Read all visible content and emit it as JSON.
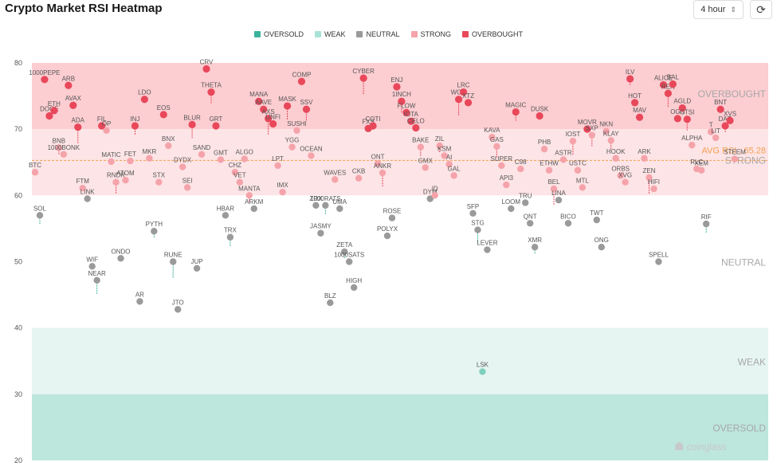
{
  "header": {
    "title": "Crypto Market RSI Heatmap",
    "interval_label": "4 hour",
    "interval_icon": "chevron-updown-icon",
    "refresh_icon": "refresh-icon"
  },
  "brand": {
    "name": "coinglass",
    "icon": "coinglass-logo-icon"
  },
  "chart_data": {
    "type": "scatter",
    "title": "Crypto Market RSI Heatmap",
    "ylim": [
      20,
      80
    ],
    "yticks": [
      20,
      30,
      40,
      50,
      60,
      70,
      80
    ],
    "legend_position": "top-center",
    "legend": [
      {
        "name": "OVERSOLD",
        "color": "#3bb39c"
      },
      {
        "name": "WEAK",
        "color": "#a9e3d7"
      },
      {
        "name": "NEUTRAL",
        "color": "#9a9a9a"
      },
      {
        "name": "STRONG",
        "color": "#f5a3aa"
      },
      {
        "name": "OVERBOUGHT",
        "color": "#e8485a"
      }
    ],
    "zones": [
      {
        "label": "OVERBOUGHT",
        "from": 70,
        "to": 80,
        "color": "#fccdd1"
      },
      {
        "label": "STRONG",
        "from": 60,
        "to": 70,
        "color": "#fde4e6"
      },
      {
        "label": "NEUTRAL",
        "from": 40,
        "to": 60,
        "color": "#ffffff"
      },
      {
        "label": "WEAK",
        "from": 30,
        "to": 40,
        "color": "#e6f5f2"
      },
      {
        "label": "OVERSOLD",
        "from": 20,
        "to": 30,
        "color": "#bde6dd"
      }
    ],
    "average_label": "AVG RSI : 65.28",
    "average": 65.28,
    "points": [
      {
        "name": "BTC",
        "rsi": 63.5
      },
      {
        "name": "SOL",
        "rsi": 57.0
      },
      {
        "name": "1000PEPE",
        "rsi": 77.5
      },
      {
        "name": "DOGE",
        "rsi": 72.0
      },
      {
        "name": "ETH",
        "rsi": 72.8
      },
      {
        "name": "BNB",
        "rsi": 67.2
      },
      {
        "name": "1000BONK",
        "rsi": 66.2
      },
      {
        "name": "ARB",
        "rsi": 76.6
      },
      {
        "name": "AVAX",
        "rsi": 73.6
      },
      {
        "name": "ADA",
        "rsi": 70.3
      },
      {
        "name": "FTM",
        "rsi": 61.1
      },
      {
        "name": "LINK",
        "rsi": 59.5
      },
      {
        "name": "WIF",
        "rsi": 49.3
      },
      {
        "name": "NEAR",
        "rsi": 47.2
      },
      {
        "name": "FIL",
        "rsi": 70.5
      },
      {
        "name": "OP",
        "rsi": 69.8
      },
      {
        "name": "MATIC",
        "rsi": 65.1
      },
      {
        "name": "RNDR",
        "rsi": 62.0
      },
      {
        "name": "ONDO",
        "rsi": 50.5
      },
      {
        "name": "ATOM",
        "rsi": 62.3
      },
      {
        "name": "FET",
        "rsi": 65.2
      },
      {
        "name": "INJ",
        "rsi": 70.5
      },
      {
        "name": "AR",
        "rsi": 44.0
      },
      {
        "name": "LDO",
        "rsi": 74.5
      },
      {
        "name": "MKR",
        "rsi": 65.6
      },
      {
        "name": "PYTH",
        "rsi": 54.6
      },
      {
        "name": "STX",
        "rsi": 62.0
      },
      {
        "name": "EOS",
        "rsi": 72.2
      },
      {
        "name": "BNX",
        "rsi": 67.5
      },
      {
        "name": "RUNE",
        "rsi": 50.0
      },
      {
        "name": "JTO",
        "rsi": 42.8
      },
      {
        "name": "DYDX",
        "rsi": 64.3
      },
      {
        "name": "SEI",
        "rsi": 61.2
      },
      {
        "name": "BLUR",
        "rsi": 70.7
      },
      {
        "name": "JUP",
        "rsi": 49.0
      },
      {
        "name": "SAND",
        "rsi": 66.2
      },
      {
        "name": "CRV",
        "rsi": 79.1
      },
      {
        "name": "THETA",
        "rsi": 75.6
      },
      {
        "name": "GRT",
        "rsi": 70.5
      },
      {
        "name": "GMT",
        "rsi": 65.4
      },
      {
        "name": "HBAR",
        "rsi": 57.0
      },
      {
        "name": "TRX",
        "rsi": 53.7
      },
      {
        "name": "CHZ",
        "rsi": 63.5
      },
      {
        "name": "VET",
        "rsi": 62.0
      },
      {
        "name": "ALGO",
        "rsi": 65.5
      },
      {
        "name": "MANTA",
        "rsi": 60.0
      },
      {
        "name": "ARKM",
        "rsi": 58.0
      },
      {
        "name": "MANA",
        "rsi": 74.2
      },
      {
        "name": "AAVE",
        "rsi": 73.0
      },
      {
        "name": "AXS",
        "rsi": 71.6
      },
      {
        "name": "UNFI",
        "rsi": 70.8
      },
      {
        "name": "LPT",
        "rsi": 64.5
      },
      {
        "name": "IMX",
        "rsi": 60.5
      },
      {
        "name": "MASK",
        "rsi": 73.5
      },
      {
        "name": "YGG",
        "rsi": 67.3
      },
      {
        "name": "SUSHI",
        "rsi": 69.8
      },
      {
        "name": "COMP",
        "rsi": 77.2
      },
      {
        "name": "SSV",
        "rsi": 73.0
      },
      {
        "name": "OCEAN",
        "rsi": 66.0
      },
      {
        "name": "ZRX",
        "rsi": 58.5
      },
      {
        "name": "JASMY",
        "rsi": 54.3
      },
      {
        "name": "1000RATS",
        "rsi": 58.5
      },
      {
        "name": "BLZ",
        "rsi": 43.8
      },
      {
        "name": "WAVES",
        "rsi": 62.4
      },
      {
        "name": "UMA",
        "rsi": 58.0
      },
      {
        "name": "ZETA",
        "rsi": 51.5
      },
      {
        "name": "1000SATS",
        "rsi": 50.0
      },
      {
        "name": "HIGH",
        "rsi": 46.1
      },
      {
        "name": "CKB",
        "rsi": 62.6
      },
      {
        "name": "CYBER",
        "rsi": 77.7
      },
      {
        "name": "FXS",
        "rsi": 70.1
      },
      {
        "name": "COTI",
        "rsi": 70.5
      },
      {
        "name": "ONT",
        "rsi": 64.8
      },
      {
        "name": "ANKR",
        "rsi": 63.4
      },
      {
        "name": "POLYX",
        "rsi": 53.9
      },
      {
        "name": "ROSE",
        "rsi": 56.6
      },
      {
        "name": "ENJ",
        "rsi": 76.4
      },
      {
        "name": "1INCH",
        "rsi": 74.2
      },
      {
        "name": "FLOW",
        "rsi": 72.5
      },
      {
        "name": "IOTA",
        "rsi": 71.2
      },
      {
        "name": "CELO",
        "rsi": 70.2
      },
      {
        "name": "BAKE",
        "rsi": 67.3
      },
      {
        "name": "GMX",
        "rsi": 64.2
      },
      {
        "name": "DYM",
        "rsi": 59.5
      },
      {
        "name": "ID",
        "rsi": 60.0
      },
      {
        "name": "ZIL",
        "rsi": 67.5
      },
      {
        "name": "KSM",
        "rsi": 66.0
      },
      {
        "name": "AI",
        "rsi": 64.7
      },
      {
        "name": "GAL",
        "rsi": 63.0
      },
      {
        "name": "WOO",
        "rsi": 74.5
      },
      {
        "name": "LRC",
        "rsi": 75.6
      },
      {
        "name": "XTZ",
        "rsi": 74.0
      },
      {
        "name": "SFP",
        "rsi": 57.3
      },
      {
        "name": "STG",
        "rsi": 54.8
      },
      {
        "name": "LSK",
        "rsi": 33.4
      },
      {
        "name": "LEVER",
        "rsi": 51.8
      },
      {
        "name": "KAVA",
        "rsi": 68.8
      },
      {
        "name": "GAS",
        "rsi": 67.4
      },
      {
        "name": "SUPER",
        "rsi": 64.5
      },
      {
        "name": "API3",
        "rsi": 61.6
      },
      {
        "name": "LOOM",
        "rsi": 58.0
      },
      {
        "name": "MAGIC",
        "rsi": 72.6
      },
      {
        "name": "C98",
        "rsi": 64.0
      },
      {
        "name": "TRU",
        "rsi": 58.9
      },
      {
        "name": "QNT",
        "rsi": 55.8
      },
      {
        "name": "XMR",
        "rsi": 52.2
      },
      {
        "name": "DUSK",
        "rsi": 72.0
      },
      {
        "name": "PHB",
        "rsi": 67.0
      },
      {
        "name": "ETHW",
        "rsi": 63.8
      },
      {
        "name": "BEL",
        "rsi": 61.0
      },
      {
        "name": "LINA",
        "rsi": 59.3
      },
      {
        "name": "ASTR",
        "rsi": 65.4
      },
      {
        "name": "BICO",
        "rsi": 55.8
      },
      {
        "name": "IOST",
        "rsi": 68.2
      },
      {
        "name": "USTC",
        "rsi": 63.8
      },
      {
        "name": "MTL",
        "rsi": 61.2
      },
      {
        "name": "MOVR",
        "rsi": 70.0
      },
      {
        "name": "SXP",
        "rsi": 69.1
      },
      {
        "name": "TWT",
        "rsi": 56.3
      },
      {
        "name": "ONG",
        "rsi": 52.2
      },
      {
        "name": "NKN",
        "rsi": 69.7
      },
      {
        "name": "KLAY",
        "rsi": 68.3
      },
      {
        "name": "HOOK",
        "rsi": 65.6
      },
      {
        "name": "ORBS",
        "rsi": 63.0
      },
      {
        "name": "XVG",
        "rsi": 62.0
      },
      {
        "name": "ILV",
        "rsi": 77.6
      },
      {
        "name": "HOT",
        "rsi": 74.0
      },
      {
        "name": "MAV",
        "rsi": 71.8
      },
      {
        "name": "ARK",
        "rsi": 65.6
      },
      {
        "name": "ZEN",
        "rsi": 62.7
      },
      {
        "name": "HIFI",
        "rsi": 61.0
      },
      {
        "name": "SPELL",
        "rsi": 50.0
      },
      {
        "name": "ALICE",
        "rsi": 76.7
      },
      {
        "name": "REN",
        "rsi": 75.4
      },
      {
        "name": "BAL",
        "rsi": 76.8
      },
      {
        "name": "OGN",
        "rsi": 71.6
      },
      {
        "name": "AGLD",
        "rsi": 73.2
      },
      {
        "name": "CTSI",
        "rsi": 71.5
      },
      {
        "name": "ALPHA",
        "rsi": 67.6
      },
      {
        "name": "RLC",
        "rsi": 64.0
      },
      {
        "name": "XEM",
        "rsi": 63.8
      },
      {
        "name": "RIF",
        "rsi": 55.7
      },
      {
        "name": "T",
        "rsi": 69.6
      },
      {
        "name": "LIT",
        "rsi": 68.7
      },
      {
        "name": "BNT",
        "rsi": 73.0
      },
      {
        "name": "DAR",
        "rsi": 70.5
      },
      {
        "name": "XVS",
        "rsi": 71.3
      },
      {
        "name": "STEEM",
        "rsi": 65.5
      }
    ]
  }
}
